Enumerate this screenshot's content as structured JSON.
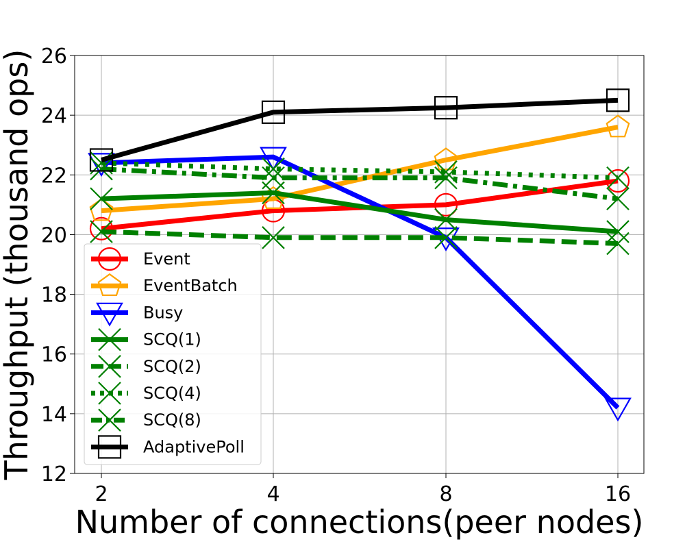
{
  "chart_data": {
    "type": "line",
    "xlabel": "Number of connections(peer nodes)",
    "ylabel": "Throughput (thousand ops)",
    "categories": [
      "2",
      "4",
      "8",
      "16"
    ],
    "ylim": [
      12,
      26
    ],
    "yticks": [
      12,
      14,
      16,
      18,
      20,
      22,
      24,
      26
    ],
    "grid": true,
    "legend_position": "lower-left",
    "series": [
      {
        "name": "Event",
        "values": [
          20.2,
          20.8,
          21.0,
          21.8
        ],
        "color": "#ff0000",
        "marker": "circle",
        "dash": "solid"
      },
      {
        "name": "EventBatch",
        "values": [
          20.8,
          21.2,
          22.5,
          23.6
        ],
        "color": "#ffa500",
        "marker": "pentagon",
        "dash": "solid"
      },
      {
        "name": "Busy",
        "values": [
          22.4,
          22.6,
          19.9,
          14.2
        ],
        "color": "#0000ff",
        "marker": "triangle-down",
        "dash": "solid"
      },
      {
        "name": "SCQ(1)",
        "values": [
          21.2,
          21.4,
          20.5,
          20.1
        ],
        "color": "#008000",
        "marker": "x",
        "dash": "solid"
      },
      {
        "name": "SCQ(2)",
        "values": [
          20.1,
          19.9,
          19.9,
          19.7
        ],
        "color": "#008000",
        "marker": "x",
        "dash": "dashed"
      },
      {
        "name": "SCQ(4)",
        "values": [
          22.4,
          22.2,
          22.1,
          21.9
        ],
        "color": "#008000",
        "marker": "x",
        "dash": "dotted"
      },
      {
        "name": "SCQ(8)",
        "values": [
          22.2,
          21.9,
          21.9,
          21.2
        ],
        "color": "#008000",
        "marker": "x",
        "dash": "dashdot"
      },
      {
        "name": "AdaptivePoll",
        "values": [
          22.5,
          24.1,
          24.25,
          24.5
        ],
        "color": "#000000",
        "marker": "square",
        "dash": "solid"
      }
    ]
  }
}
